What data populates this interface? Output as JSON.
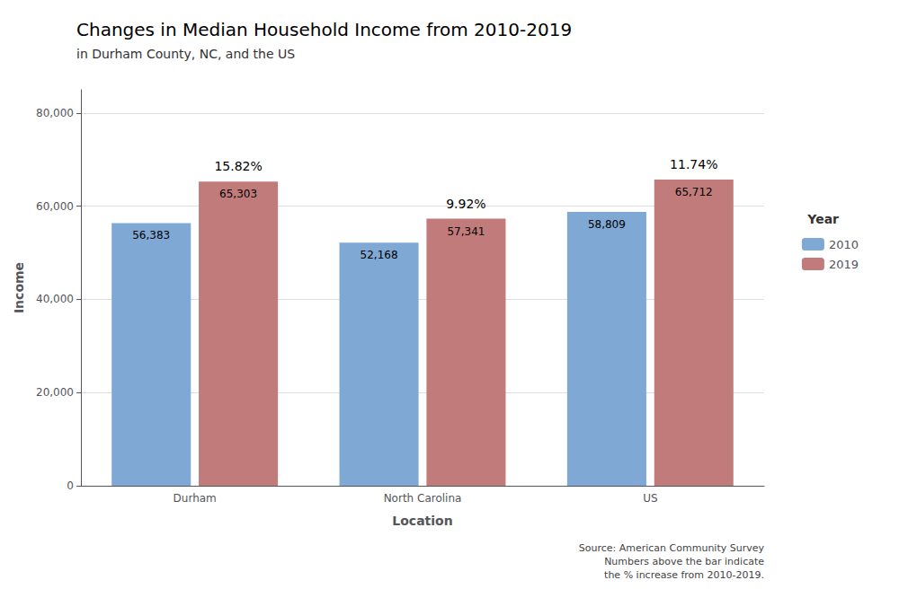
{
  "chart_data": {
    "type": "bar",
    "title": "Changes in Median Household Income from 2010-2019",
    "subtitle": "in Durham County, NC, and the US",
    "x_label": "Location",
    "y_label": "Income",
    "categories": [
      "Durham",
      "North Carolina",
      "US"
    ],
    "series": [
      {
        "name": "2010",
        "color": "#7fa8d4",
        "values": [
          56383,
          52168,
          58809
        ],
        "value_labels": [
          "56,383",
          "52,168",
          "58,809"
        ]
      },
      {
        "name": "2019",
        "color": "#c27b7b",
        "values": [
          65303,
          57341,
          65712
        ],
        "value_labels": [
          "65,303",
          "57,341",
          "65,712"
        ]
      }
    ],
    "data_labels": true,
    "annotations": [
      {
        "category": "Durham",
        "series": "2019",
        "text": "15.82%"
      },
      {
        "category": "North Carolina",
        "series": "2019",
        "text": "9.92%"
      },
      {
        "category": "US",
        "series": "2019",
        "text": "11.74%"
      }
    ],
    "legend": "right",
    "legend_title": "Year",
    "source": "Source: American Community Survey\nNumbers above the bar indicate\nthe % increase from 2010-2019.",
    "ylim": [
      0,
      85000
    ],
    "yticks": [
      0,
      {
        "value": 20000,
        "label": "20,000"
      },
      {
        "value": 40000,
        "label": "40,000"
      },
      {
        "value": 60000,
        "label": "60,000"
      },
      {
        "value": 80000,
        "label": "80,000"
      }
    ],
    "grid": true
  }
}
